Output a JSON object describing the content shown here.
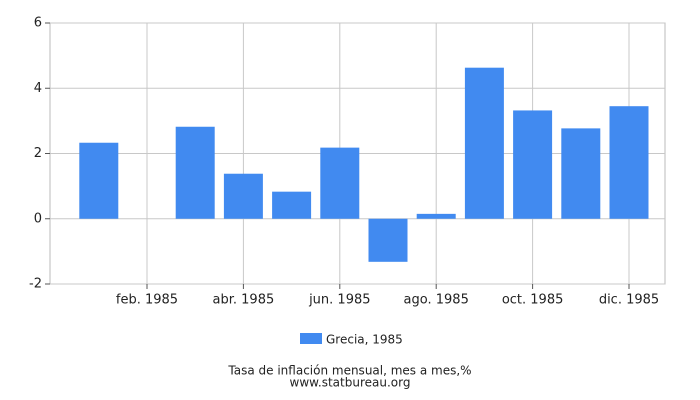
{
  "chart_data": {
    "type": "bar",
    "categories": [
      null,
      "feb. 1985",
      null,
      "abr. 1985",
      null,
      "jun. 1985",
      null,
      "ago. 1985",
      null,
      "oct. 1985",
      null,
      "dic. 1985"
    ],
    "series": [
      {
        "name": "Grecia, 1985",
        "color": "#418af0",
        "values": [
          2.33,
          0,
          2.82,
          1.38,
          0.83,
          2.18,
          -1.32,
          0.15,
          4.63,
          3.32,
          2.77,
          3.45
        ]
      }
    ],
    "ylim": [
      -2,
      6
    ],
    "yticks": [
      -2,
      0,
      2,
      4,
      6
    ],
    "grid": true,
    "title": "Tasa de inflación mensual, mes a mes,%",
    "source": "www.statbureau.org"
  }
}
